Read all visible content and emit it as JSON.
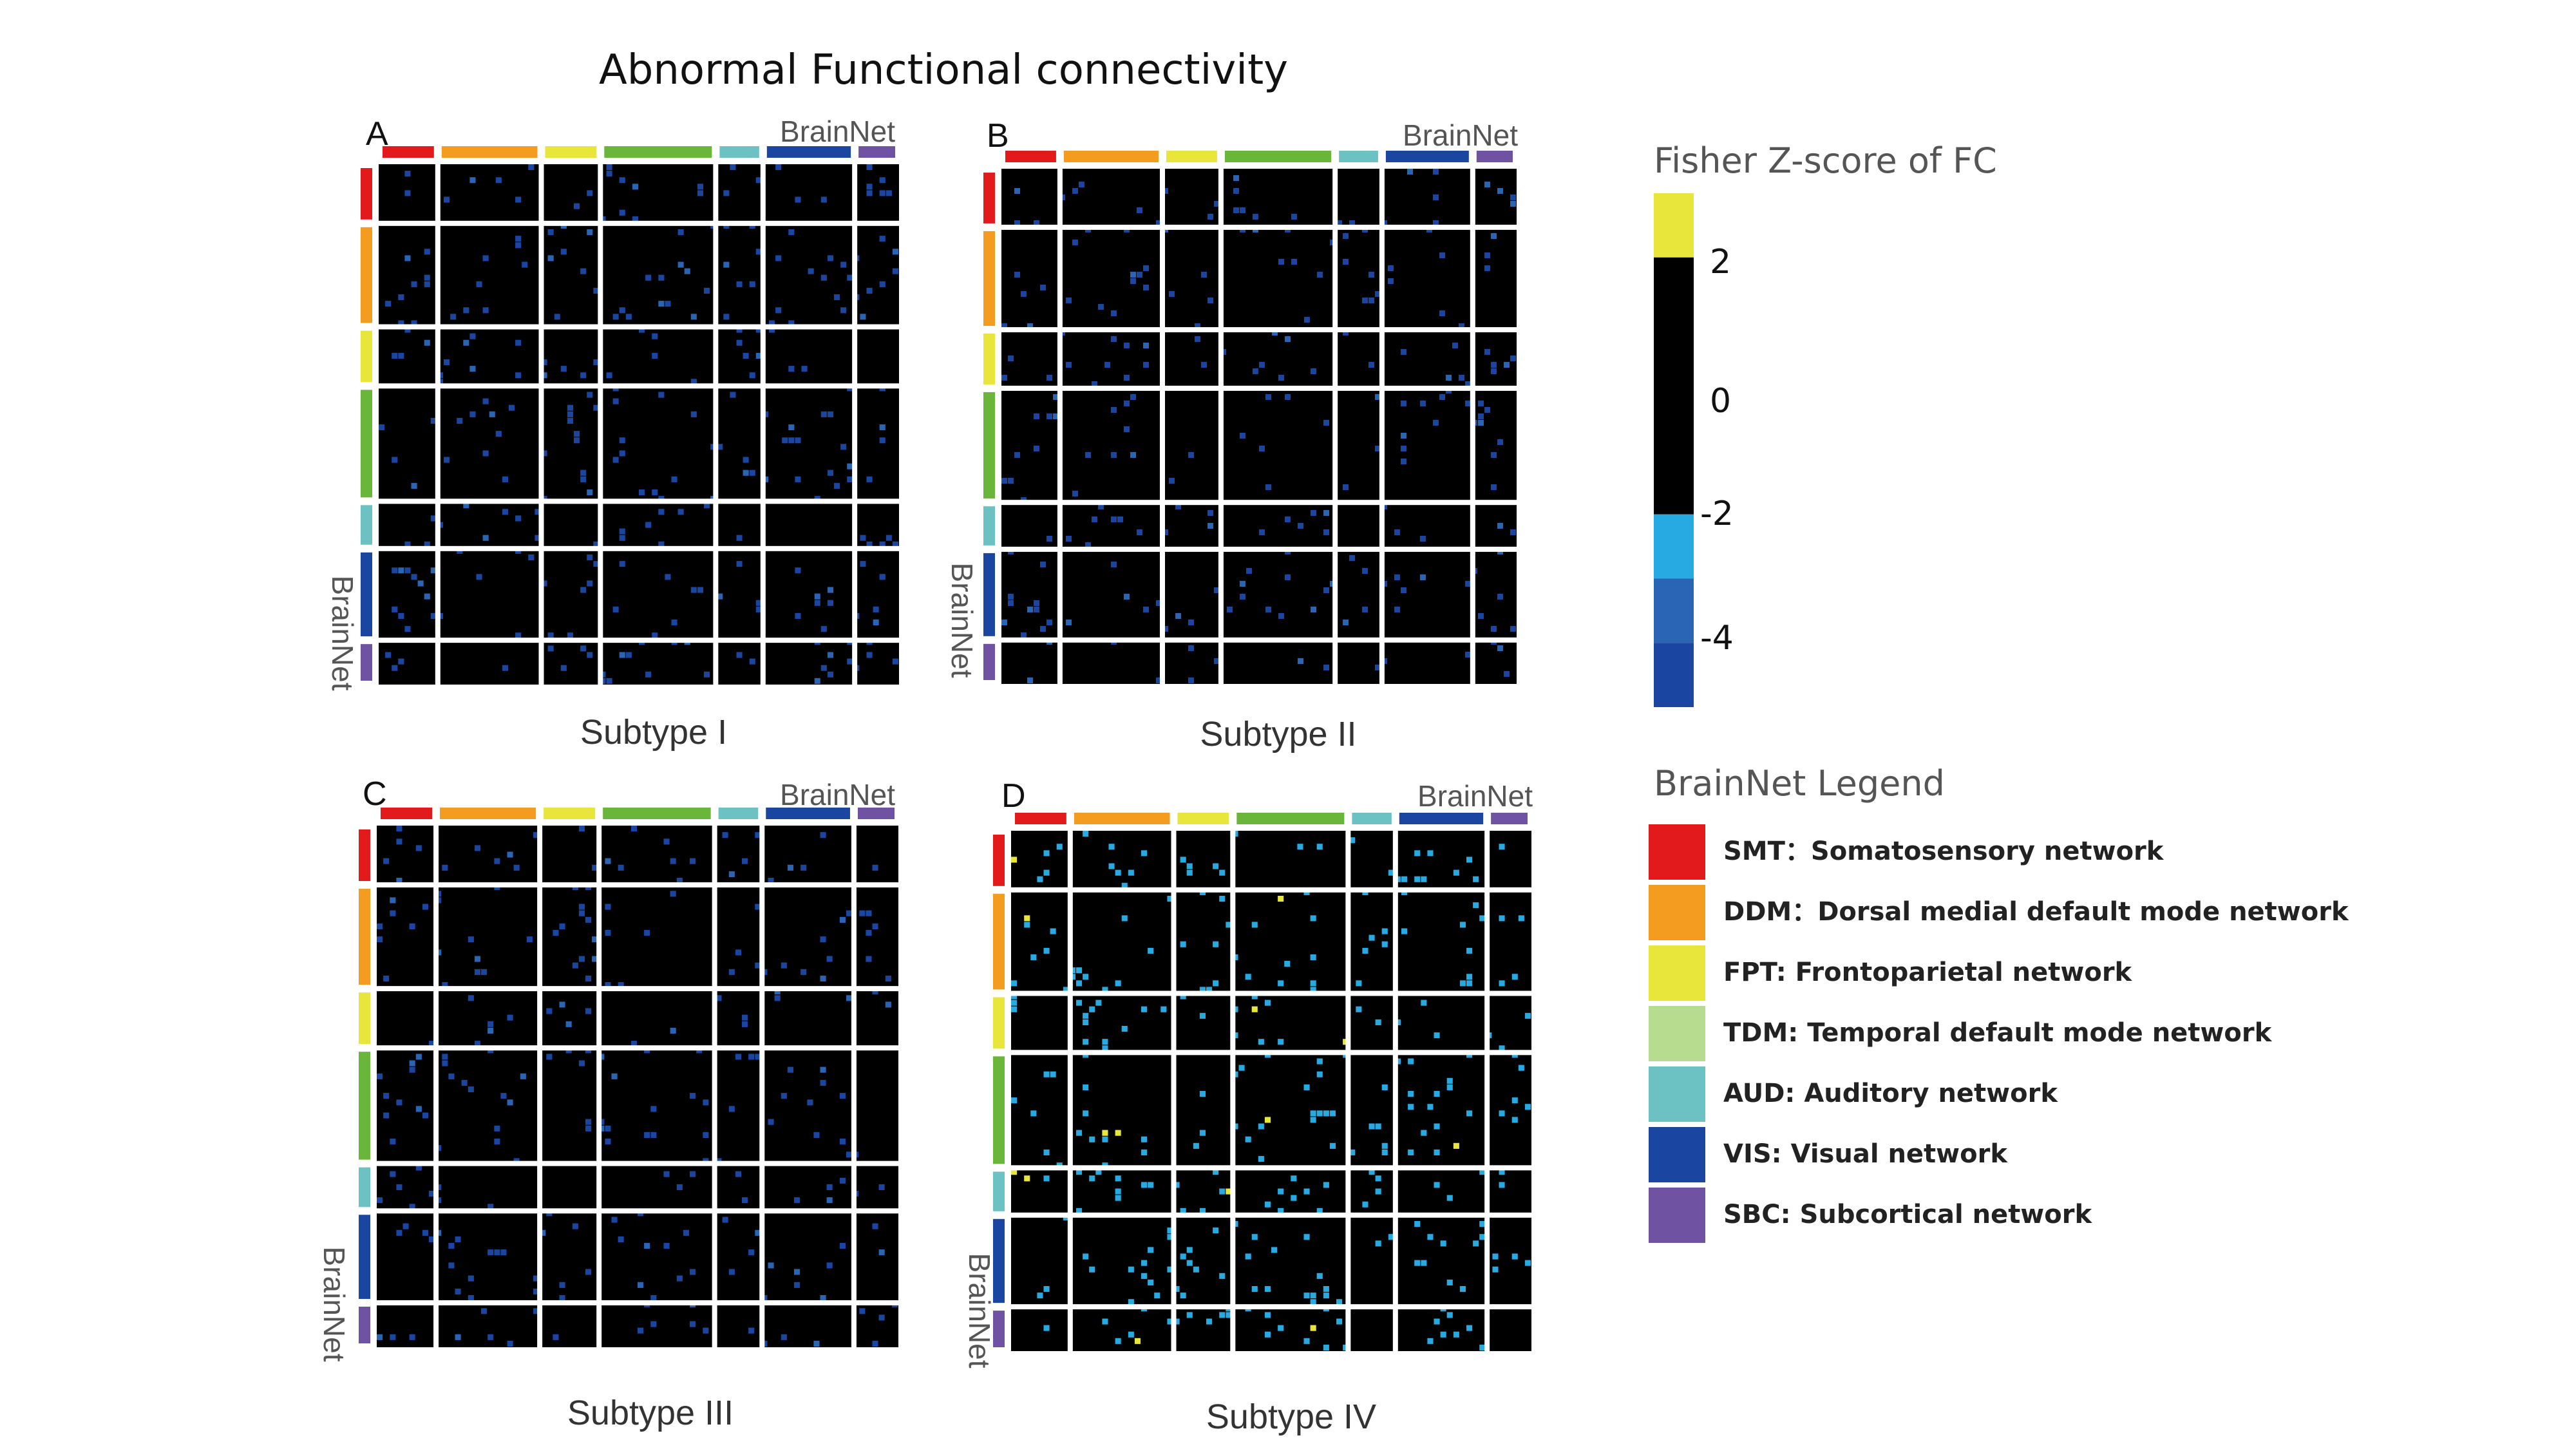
{
  "chart_data": {
    "type": "heatmap",
    "title": "Abnormal Functional connectivity",
    "axis_label": "BrainNet",
    "colorbar": {
      "title": "Fisher Z-score of FC",
      "ticks": [
        "2",
        "0",
        "-2",
        "-4"
      ],
      "color_stops": [
        {
          "from": 2,
          "to": 3,
          "color": "#e9e63b"
        },
        {
          "from": -2,
          "to": 2,
          "color": "#000000"
        },
        {
          "from": -3,
          "to": -2,
          "color": "#27a9e1"
        },
        {
          "from": -4,
          "to": -3,
          "color": "#2a64b4"
        },
        {
          "from": -5,
          "to": -4,
          "color": "#1a45a0"
        }
      ]
    },
    "networks": [
      {
        "code": "SMT",
        "label": "SMT：Somatosensory network",
        "color": "#e31a1c",
        "weight": 1
      },
      {
        "code": "DDM",
        "label": "DDM：Dorsal medial default mode network",
        "color": "#f39c1f",
        "weight": 1.75
      },
      {
        "code": "FPT",
        "label": "FPT: Frontoparietal network",
        "color": "#e9e63b",
        "weight": 1
      },
      {
        "code": "TDM",
        "label": "TDM: Temporal default mode network",
        "color": "#b7dc8f",
        "bar_color": "#6ab63a",
        "weight": 1.95
      },
      {
        "code": "AUD",
        "label": "AUD: Auditory network",
        "color": "#6cc1c2",
        "weight": 0.8
      },
      {
        "code": "VIS",
        "label": "VIS: Visual network",
        "color": "#1a45a0",
        "weight": 1.55
      },
      {
        "code": "SBC",
        "label": "SBC: Subcortical network",
        "color": "#6f53a2",
        "weight": 0.75
      }
    ],
    "panels": [
      {
        "letter": "A",
        "subtitle": "Subtype I",
        "dominant_z": -4.2,
        "density": 0.045,
        "seed": 11
      },
      {
        "letter": "B",
        "subtitle": "Subtype II",
        "dominant_z": -4.2,
        "density": 0.035,
        "seed": 23
      },
      {
        "letter": "C",
        "subtitle": "Subtype III",
        "dominant_z": -4.2,
        "density": 0.04,
        "seed": 37
      },
      {
        "letter": "D",
        "subtitle": "Subtype IV",
        "dominant_z": -2.5,
        "density": 0.045,
        "seed": 53
      }
    ]
  },
  "legend": {
    "title": "BrainNet Legend"
  }
}
